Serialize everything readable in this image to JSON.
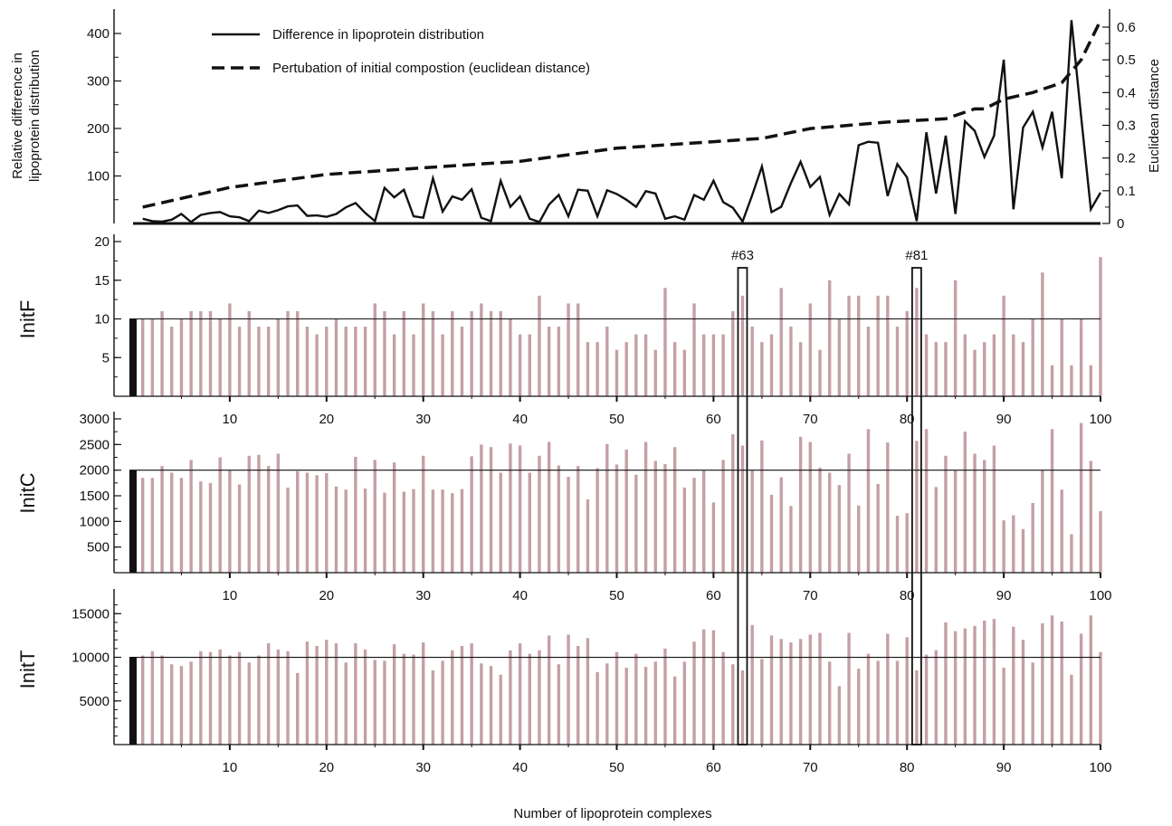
{
  "chart_data": [
    {
      "type": "line",
      "ylabel": [
        "Relative difference in",
        "lipoprotein distribution"
      ],
      "y2label": "Euclidean distance",
      "ylim": [
        0,
        400
      ],
      "y_ticks": [
        100,
        200,
        300,
        400
      ],
      "y2lim": [
        0,
        0.6
      ],
      "y2_ticks": [
        0,
        0.1,
        0.2,
        0.3,
        0.4,
        0.5,
        0.6
      ],
      "xlim": [
        0,
        100
      ],
      "legend_position": "top-left",
      "series": [
        {
          "name": "Difference in lipoprotein distribution",
          "axis": "left",
          "style": "solid",
          "color": "#111111",
          "x": [
            1,
            2,
            3,
            4,
            5,
            6,
            7,
            8,
            9,
            10,
            11,
            12,
            13,
            14,
            15,
            16,
            17,
            18,
            19,
            20,
            21,
            22,
            23,
            24,
            25,
            26,
            27,
            28,
            29,
            30,
            31,
            32,
            33,
            34,
            35,
            36,
            37,
            38,
            39,
            40,
            41,
            42,
            43,
            44,
            45,
            46,
            47,
            48,
            49,
            50,
            51,
            52,
            53,
            54,
            55,
            56,
            57,
            58,
            59,
            60,
            61,
            62,
            63,
            64,
            65,
            66,
            67,
            68,
            69,
            70,
            71,
            72,
            73,
            74,
            75,
            76,
            77,
            78,
            79,
            80,
            81,
            82,
            83,
            84,
            85,
            86,
            87,
            88,
            89,
            90,
            91,
            92,
            93,
            94,
            95,
            96,
            97,
            98,
            99,
            100
          ],
          "values": [
            10,
            5,
            4,
            8,
            20,
            3,
            18,
            22,
            24,
            15,
            13,
            5,
            27,
            22,
            28,
            36,
            38,
            16,
            17,
            14,
            20,
            34,
            43,
            22,
            5,
            75,
            55,
            71,
            15,
            12,
            95,
            25,
            57,
            50,
            72,
            12,
            5,
            90,
            35,
            57,
            10,
            3,
            40,
            60,
            15,
            71,
            69,
            15,
            70,
            62,
            50,
            35,
            68,
            63,
            10,
            15,
            8,
            60,
            50,
            90,
            45,
            33,
            4,
            60,
            120,
            24,
            35,
            85,
            130,
            77,
            98,
            18,
            62,
            40,
            165,
            172,
            170,
            58,
            125,
            97,
            5,
            192,
            63,
            185,
            20,
            215,
            195,
            140,
            185,
            345,
            30,
            202,
            235,
            160,
            235,
            95,
            428,
            225,
            30,
            65
          ]
        },
        {
          "name": "Pertubation of initial compostion (euclidean distance)",
          "axis": "right",
          "style": "dashed",
          "color": "#111111",
          "x": [
            1,
            10,
            20,
            30,
            40,
            50,
            60,
            65,
            70,
            78,
            84,
            86,
            87,
            88,
            90,
            93,
            96,
            98,
            100
          ],
          "values": [
            0.05,
            0.11,
            0.15,
            0.17,
            0.19,
            0.23,
            0.25,
            0.26,
            0.29,
            0.31,
            0.32,
            0.34,
            0.35,
            0.35,
            0.38,
            0.4,
            0.43,
            0.5,
            0.62
          ]
        }
      ]
    },
    {
      "type": "bar",
      "panel_label": "InitF",
      "ylim": [
        0,
        20
      ],
      "y_ticks": [
        5,
        10,
        15,
        20
      ],
      "reference_line": 10,
      "bar_color": "#c4a0a4",
      "x_ticks": [
        10,
        20,
        30,
        40,
        50,
        60,
        70,
        80,
        90,
        100
      ],
      "values": [
        10,
        10,
        11,
        9,
        10,
        11,
        11,
        11,
        10,
        12,
        9,
        11,
        9,
        9,
        10,
        11,
        11,
        9,
        8,
        9,
        10,
        9,
        9,
        9,
        12,
        11,
        8,
        11,
        8,
        12,
        11,
        8,
        11,
        9,
        11,
        12,
        11,
        11,
        10,
        8,
        8,
        13,
        9,
        9,
        12,
        12,
        7,
        7,
        9,
        6,
        7,
        8,
        8,
        6,
        14,
        7,
        6,
        12,
        8,
        8,
        8,
        11,
        13,
        9,
        7,
        8,
        14,
        9,
        7,
        12,
        6,
        15,
        10,
        13,
        13,
        9,
        13,
        13,
        9,
        11,
        14,
        8,
        7,
        7,
        15,
        8,
        6,
        7,
        8,
        13,
        8,
        7,
        10,
        16,
        4,
        10,
        4,
        10,
        4,
        18
      ]
    },
    {
      "type": "bar",
      "panel_label": "InitC",
      "ylim": [
        0,
        3000
      ],
      "y_ticks": [
        500,
        1000,
        1500,
        2000,
        2500,
        3000
      ],
      "reference_line": 2000,
      "bar_color": "#c4a0a4",
      "x_ticks": [
        10,
        20,
        30,
        40,
        50,
        60,
        70,
        80,
        90,
        100
      ],
      "values": [
        1850,
        1850,
        2080,
        1950,
        1850,
        2200,
        1780,
        1750,
        2250,
        2000,
        1720,
        2280,
        2300,
        2080,
        2320,
        1660,
        1980,
        1950,
        1900,
        1940,
        1680,
        1620,
        2260,
        1640,
        2200,
        1560,
        2150,
        1580,
        1630,
        2280,
        1620,
        1620,
        1550,
        1630,
        2270,
        2500,
        2450,
        1950,
        2520,
        2480,
        1950,
        2280,
        2550,
        2090,
        1870,
        2080,
        1430,
        2040,
        2510,
        2110,
        2400,
        1910,
        2550,
        2180,
        2120,
        2450,
        1660,
        1850,
        2000,
        1370,
        2200,
        2700,
        2480,
        2000,
        2580,
        1520,
        1860,
        1300,
        2650,
        2550,
        2050,
        1950,
        1710,
        2320,
        1310,
        2800,
        1730,
        2540,
        1110,
        1160,
        2570,
        2800,
        1670,
        2280,
        2000,
        2750,
        2320,
        2200,
        2480,
        1020,
        1120,
        850,
        1360,
        2000,
        2800,
        1620,
        750,
        2920,
        2180,
        1200
      ]
    },
    {
      "type": "bar",
      "panel_label": "InitT",
      "ylim": [
        0,
        17000
      ],
      "y_ticks": [
        5000,
        10000,
        15000
      ],
      "reference_line": 10000,
      "bar_color": "#c4a0a4",
      "x_ticks": [
        10,
        20,
        30,
        40,
        50,
        60,
        70,
        80,
        90,
        100
      ],
      "values": [
        10200,
        10700,
        10200,
        9200,
        9000,
        9500,
        10700,
        10600,
        10900,
        10200,
        10600,
        9400,
        10200,
        11600,
        10900,
        10700,
        8200,
        11800,
        11300,
        12000,
        11600,
        9400,
        11600,
        10900,
        9700,
        9600,
        11500,
        10400,
        10300,
        11700,
        8500,
        9600,
        10800,
        11300,
        11600,
        9300,
        9000,
        8000,
        10800,
        11600,
        10400,
        10800,
        12500,
        9200,
        12600,
        11300,
        12200,
        8300,
        9300,
        10600,
        8800,
        10400,
        8900,
        9500,
        11000,
        7800,
        9500,
        11800,
        13200,
        13100,
        10600,
        9200,
        8500,
        13700,
        9800,
        12500,
        12100,
        11700,
        12100,
        12600,
        12800,
        9500,
        6700,
        12800,
        8700,
        10400,
        9600,
        12700,
        9600,
        12300,
        8500,
        10300,
        10800,
        14000,
        13000,
        13300,
        13600,
        14200,
        14400,
        8800,
        13500,
        12000,
        9400,
        13900,
        14800,
        14100,
        8000,
        12700,
        14800,
        10600
      ]
    }
  ],
  "markers": [
    {
      "label": "#63",
      "x": 63
    },
    {
      "label": "#81",
      "x": 81
    }
  ],
  "xlabel": "Number of lipoprotein complexes"
}
